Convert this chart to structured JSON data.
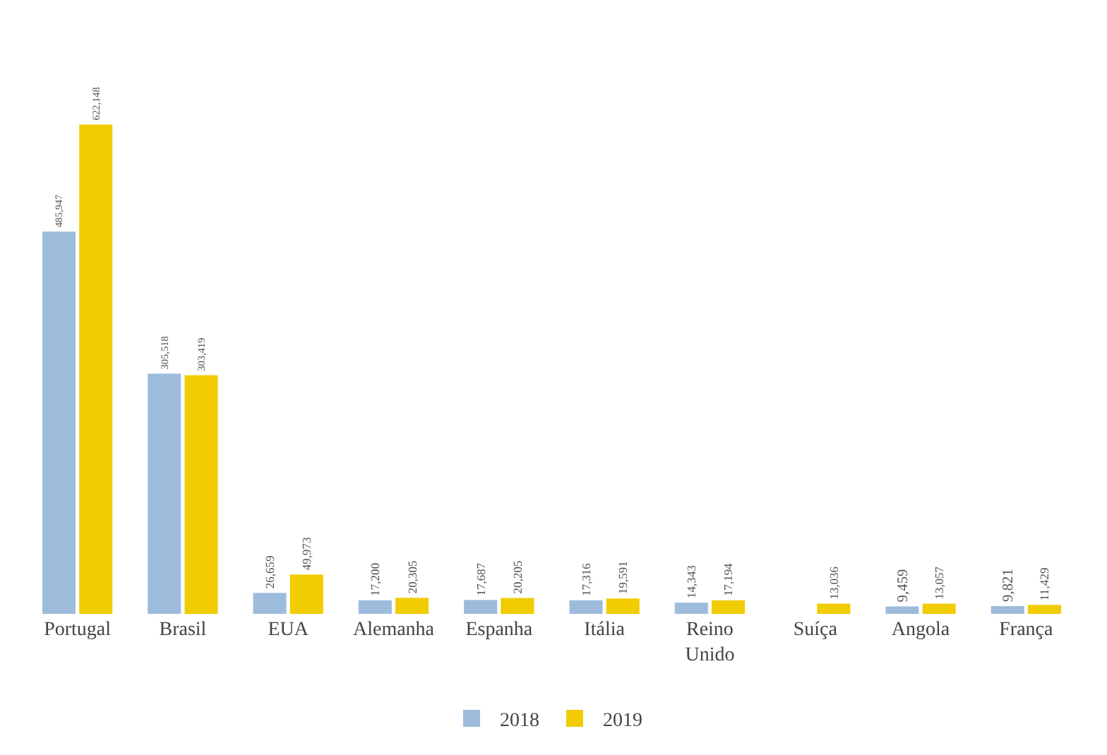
{
  "chart_data": {
    "type": "bar",
    "categories": [
      "Portugal",
      "Brasil",
      "EUA",
      "Alemanha",
      "Espanha",
      "Itália",
      "Reino Unido",
      "Suíça",
      "Angola",
      "França"
    ],
    "series": [
      {
        "name": "2018",
        "color": "#9dbcdc",
        "values": [
          485947,
          305518,
          26659,
          17200,
          17687,
          17316,
          14343,
          null,
          9459,
          9821
        ],
        "value_labels": [
          "485,947",
          "305,518",
          "26,659",
          "17,200",
          "17,687",
          "17,316",
          "14,343",
          null,
          "9,459",
          "9,821"
        ]
      },
      {
        "name": "2019",
        "color": "#f0cc00",
        "values": [
          622148,
          303419,
          49973,
          20305,
          20205,
          19591,
          17194,
          13036,
          13057,
          11429
        ],
        "value_labels": [
          "622,148",
          "303,419",
          "49,973",
          "20,305",
          "20,205",
          "19,591",
          "17,194",
          "13,036",
          "13,057",
          "11,429"
        ]
      }
    ],
    "tick_labels": "x",
    "legend": "bottom"
  }
}
